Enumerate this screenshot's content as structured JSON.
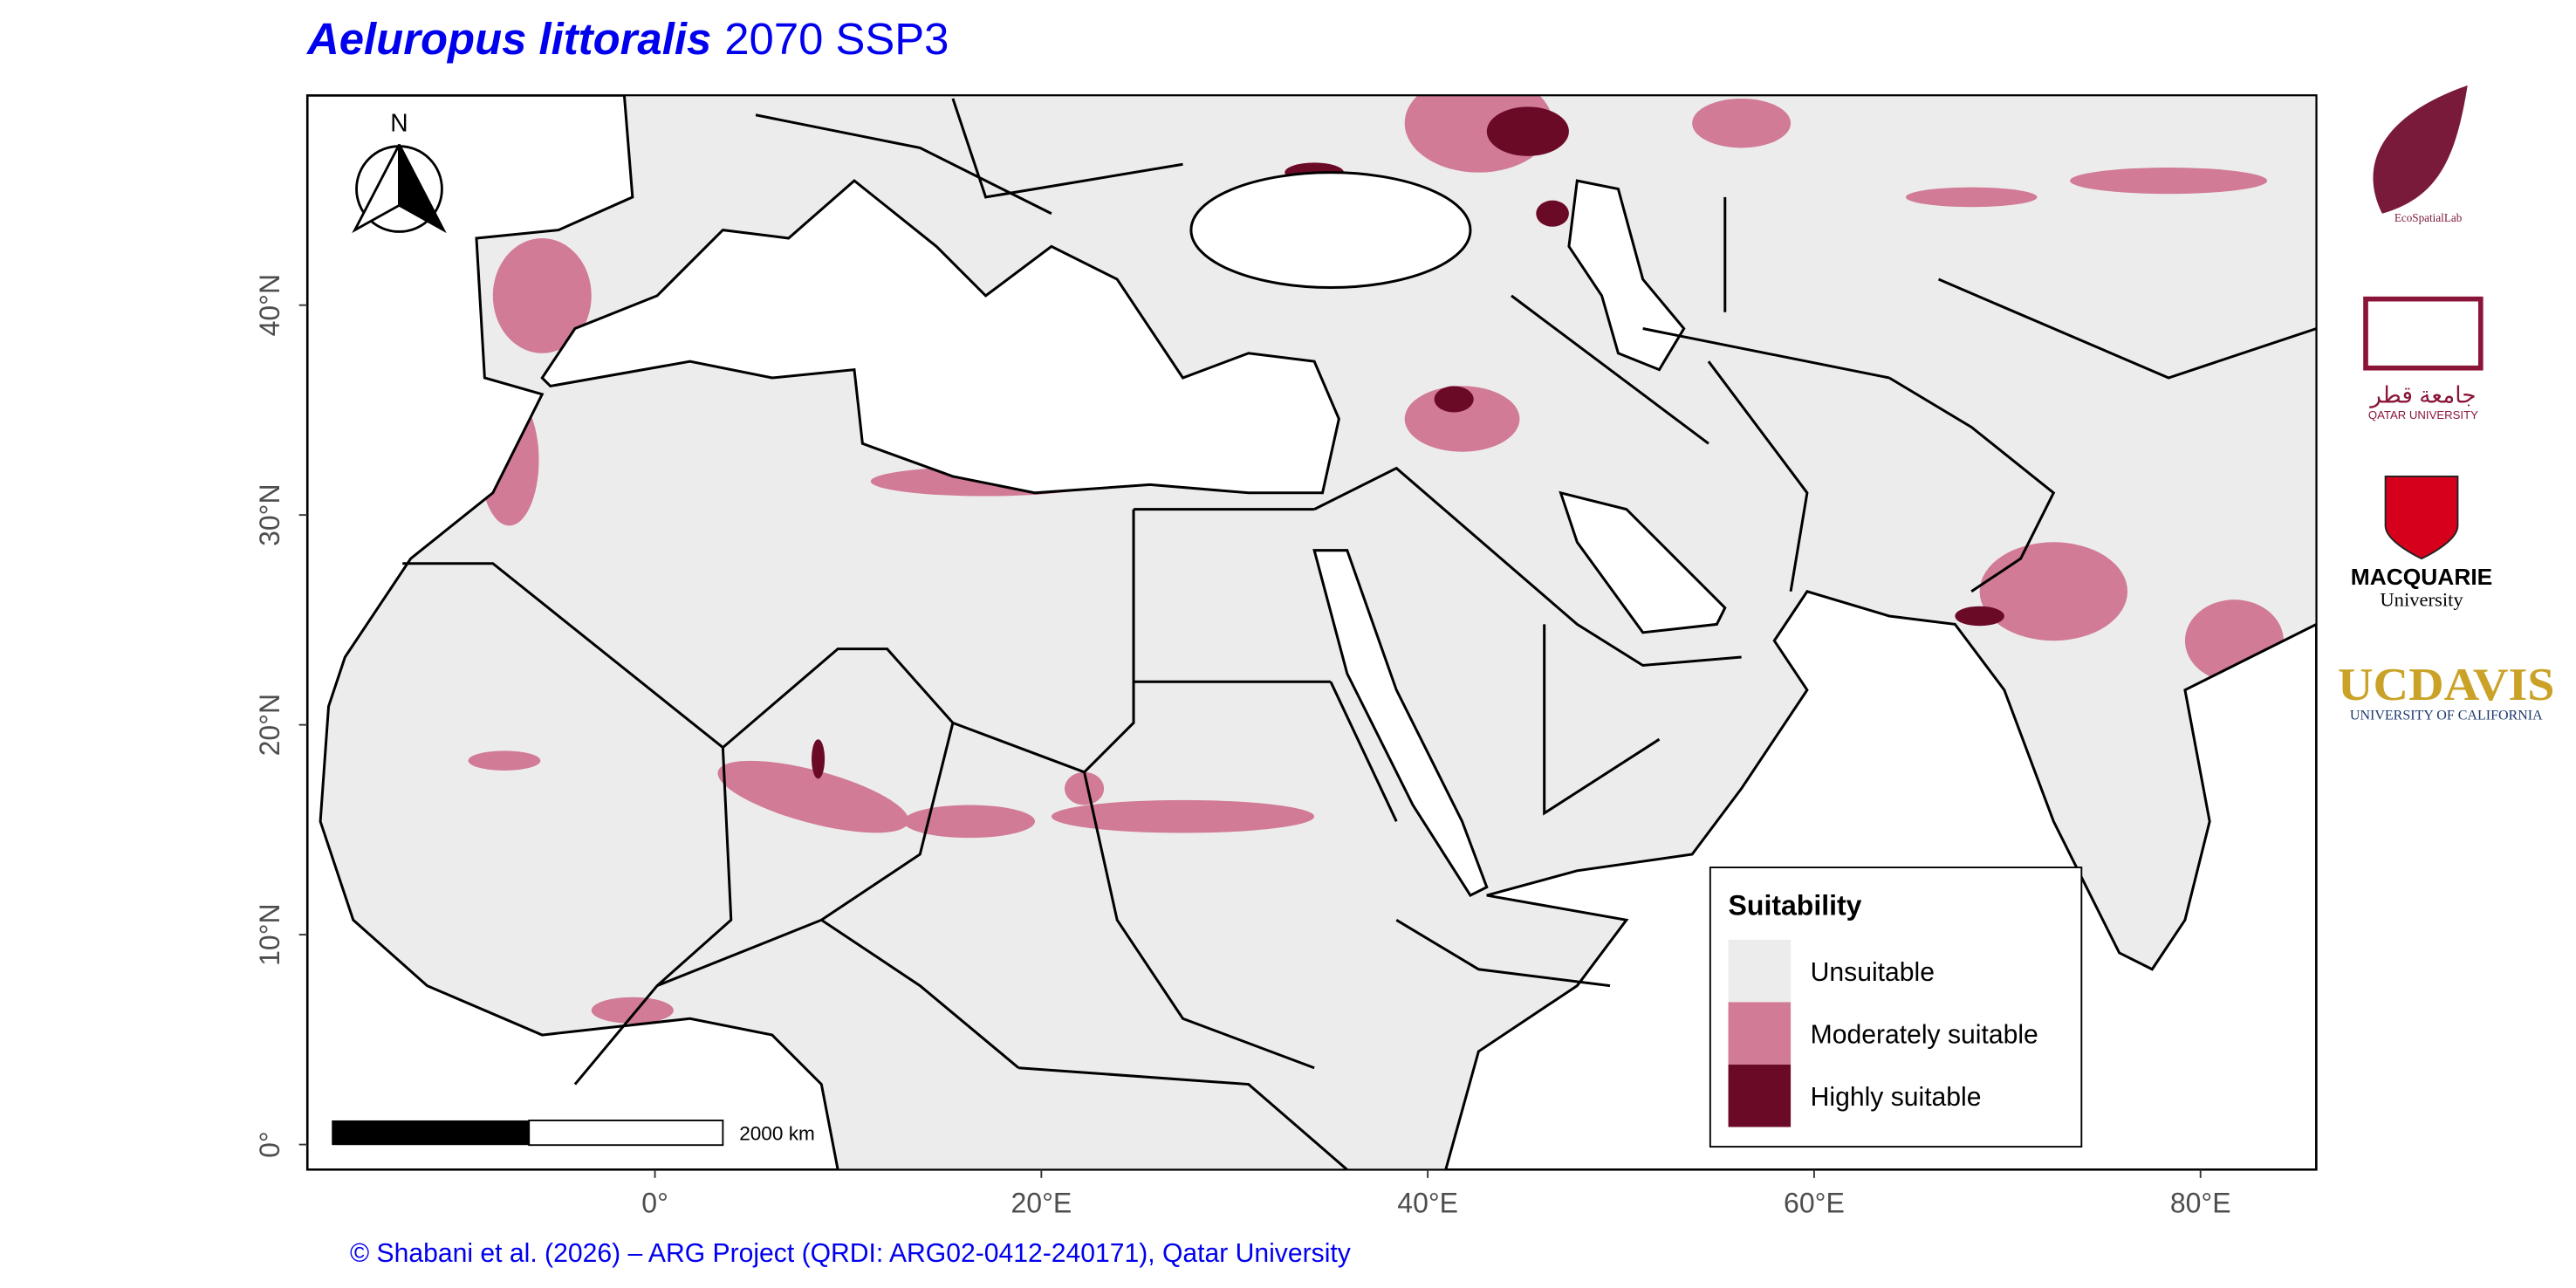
{
  "header": {
    "species": "Aeluropus littoralis",
    "scenario": "2070 SSP3"
  },
  "map": {
    "xlim": [
      -18,
      86
    ],
    "ylim": [
      -1.2,
      50
    ],
    "xticks": [
      {
        "value": 0,
        "label": "0°"
      },
      {
        "value": 20,
        "label": "20°E"
      },
      {
        "value": 40,
        "label": "40°E"
      },
      {
        "value": 60,
        "label": "60°E"
      },
      {
        "value": 80,
        "label": "80°E"
      }
    ],
    "yticks": [
      {
        "value": 0,
        "label": "0°"
      },
      {
        "value": 10,
        "label": "10°N"
      },
      {
        "value": 20,
        "label": "20°N"
      },
      {
        "value": 30,
        "label": "30°N"
      },
      {
        "value": 40,
        "label": "40°N"
      }
    ],
    "north": "N",
    "scale_bar": "2000 km"
  },
  "legend": {
    "title": "Suitability",
    "items": [
      {
        "label": "Unsuitable",
        "color": "#ececec"
      },
      {
        "label": "Moderately suitable",
        "color": "#d17b96"
      },
      {
        "label": "Highly suitable",
        "color": "#6b0a27"
      }
    ]
  },
  "logos": {
    "ecospatial": "EcoSpatialLab",
    "qu_arabic": "جامعة قطر",
    "qu": "QATAR UNIVERSITY",
    "mq": "MACQUARIE",
    "mq_sub": "University",
    "uc": "UC",
    "davis": "DAVIS",
    "uc_sub": "UNIVERSITY OF CALIFORNIA"
  },
  "credit": "© Shabani et al. (2026) – ARG Project (QRDI: ARG02-0412-240171), Qatar University"
}
